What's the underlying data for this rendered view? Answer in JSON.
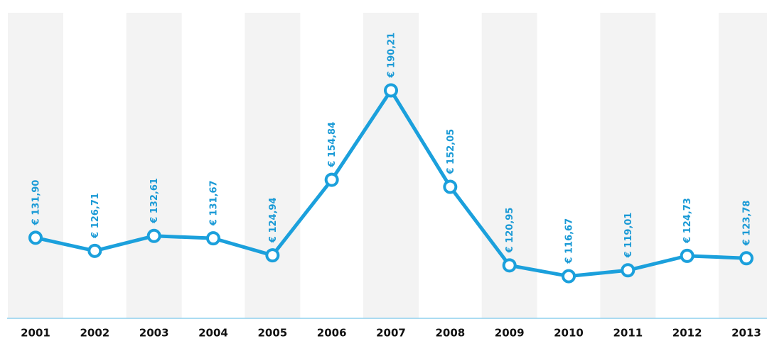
{
  "chart_data": {
    "type": "line",
    "categories": [
      "2001",
      "2002",
      "2003",
      "2004",
      "2005",
      "2006",
      "2007",
      "2008",
      "2009",
      "2010",
      "2011",
      "2012",
      "2013"
    ],
    "values": [
      131.9,
      126.71,
      132.61,
      131.67,
      124.94,
      154.84,
      190.21,
      152.05,
      120.95,
      116.67,
      119.01,
      124.73,
      123.78
    ],
    "value_labels": [
      "€ 131,90",
      "€ 126,71",
      "€ 132,61",
      "€ 131,67",
      "€ 124,94",
      "€ 154,84",
      "€ 190,21",
      "€ 152,05",
      "€ 120,95",
      "€ 116,67",
      "€ 119,01",
      "€ 124,73",
      "€ 123,78"
    ],
    "color": "#1ba0dc",
    "ylim": [
      100,
      226
    ]
  }
}
